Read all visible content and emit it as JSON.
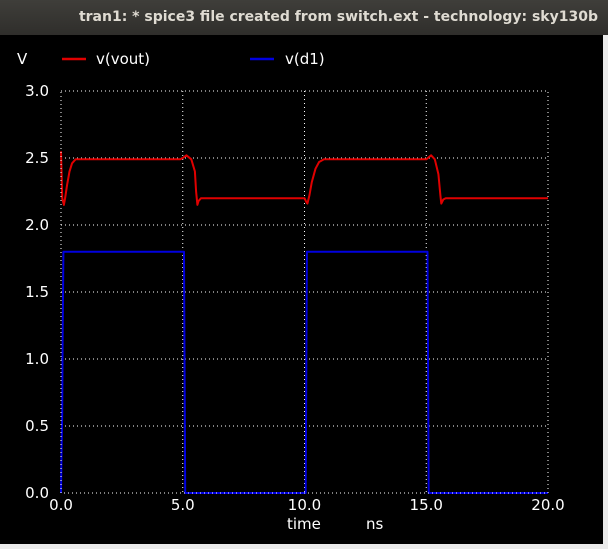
{
  "window": {
    "title": "tran1: * spice3 file created from switch.ext - technology: sky130b"
  },
  "colors": {
    "background": "#000000",
    "foreground": "#ffffff",
    "grid": "#ffffff"
  },
  "chart_data": {
    "type": "line",
    "ylabel": "V",
    "xlabel": "time",
    "xunit": "ns",
    "xlim": [
      0,
      20
    ],
    "ylim": [
      0,
      3
    ],
    "grid": true,
    "xticks": [
      "0.0",
      "5.0",
      "10.0",
      "15.0",
      "20.0"
    ],
    "yticks": [
      "0.0",
      "0.5",
      "1.0",
      "1.5",
      "2.0",
      "2.5",
      "3.0"
    ],
    "legend_position": "top",
    "series": [
      {
        "name": "v(vout)",
        "color": "#e00000",
        "x": [
          0.0,
          0.05,
          0.12,
          0.17,
          0.25,
          0.35,
          0.45,
          0.6,
          0.8,
          1.0,
          2.0,
          3.0,
          4.0,
          4.9,
          5.0,
          5.15,
          5.35,
          5.5,
          5.55,
          5.6,
          5.65,
          5.75,
          5.9,
          6.2,
          7.0,
          8.0,
          9.0,
          10.0,
          10.08,
          10.12,
          10.2,
          10.3,
          10.45,
          10.6,
          10.8,
          11.0,
          12.0,
          13.0,
          14.0,
          15.0,
          15.2,
          15.35,
          15.5,
          15.58,
          15.62,
          15.7,
          15.8,
          16.0,
          17.0,
          18.0,
          19.0,
          20.0
        ],
        "y": [
          2.55,
          2.2,
          2.15,
          2.2,
          2.3,
          2.4,
          2.46,
          2.49,
          2.49,
          2.49,
          2.49,
          2.49,
          2.49,
          2.49,
          2.5,
          2.52,
          2.49,
          2.4,
          2.25,
          2.15,
          2.18,
          2.2,
          2.2,
          2.2,
          2.2,
          2.2,
          2.2,
          2.2,
          2.17,
          2.16,
          2.22,
          2.32,
          2.42,
          2.47,
          2.49,
          2.49,
          2.49,
          2.49,
          2.49,
          2.49,
          2.52,
          2.49,
          2.38,
          2.22,
          2.16,
          2.19,
          2.2,
          2.2,
          2.2,
          2.2,
          2.2,
          2.2
        ]
      },
      {
        "name": "v(d1)",
        "color": "#0000e0",
        "x": [
          0.0,
          0.02,
          0.05,
          0.07,
          0.1,
          5.0,
          5.05,
          5.1,
          10.0,
          10.05,
          10.1,
          15.0,
          15.05,
          15.1,
          20.0
        ],
        "y": [
          0.0,
          0.3,
          0.6,
          1.2,
          1.8,
          1.8,
          1.8,
          0.0,
          0.0,
          0.0,
          1.8,
          1.8,
          1.8,
          0.0,
          0.0
        ]
      }
    ]
  }
}
